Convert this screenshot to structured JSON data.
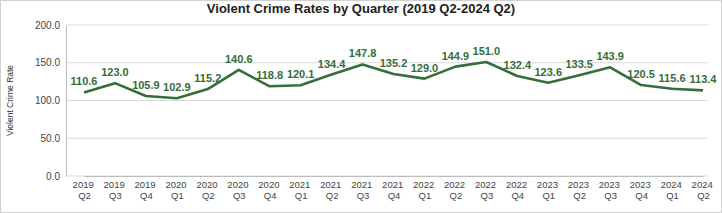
{
  "chart_data": {
    "type": "line",
    "title": "Violent Crime Rates by Quarter (2019 Q2-2024 Q2)",
    "y_label": "Violent Crime Rate",
    "categories": [
      "2019 Q2",
      "2019 Q3",
      "2019 Q4",
      "2020 Q1",
      "2020 Q2",
      "2020 Q3",
      "2020 Q4",
      "2021 Q1",
      "2021 Q2",
      "2021 Q3",
      "2021 Q4",
      "2022 Q1",
      "2022 Q2",
      "2022 Q3",
      "2022 Q4",
      "2023 Q1",
      "2023 Q2",
      "2023 Q3",
      "2023 Q4",
      "2024 Q1",
      "2024 Q2"
    ],
    "values": [
      110.6,
      123.0,
      105.9,
      102.9,
      115.2,
      140.6,
      118.8,
      120.1,
      134.4,
      147.8,
      135.2,
      129.0,
      144.9,
      151.0,
      132.4,
      123.6,
      133.5,
      143.9,
      120.5,
      115.6,
      113.4
    ],
    "value_labels": [
      "110.6",
      "123.0",
      "105.9",
      "102.9",
      "115.2",
      "140.6",
      "118.8",
      "120.1",
      "134.4",
      "147.8",
      "135.2",
      "129.0",
      "144.9",
      "151.0",
      "132.4",
      "123.6",
      "133.5",
      "143.9",
      "120.5",
      "115.6",
      "113.4"
    ],
    "color": "#356e3a",
    "ylim": [
      0,
      200
    ],
    "yticks": [
      {
        "value": 0,
        "label": "0.0"
      },
      {
        "value": 50,
        "label": "50.0"
      },
      {
        "value": 100,
        "label": "100.0"
      },
      {
        "value": 150,
        "label": "150.0"
      },
      {
        "value": 200,
        "label": "200.0"
      }
    ],
    "grid": true,
    "data_labels": true,
    "line_style": "solid",
    "marker": "none"
  }
}
